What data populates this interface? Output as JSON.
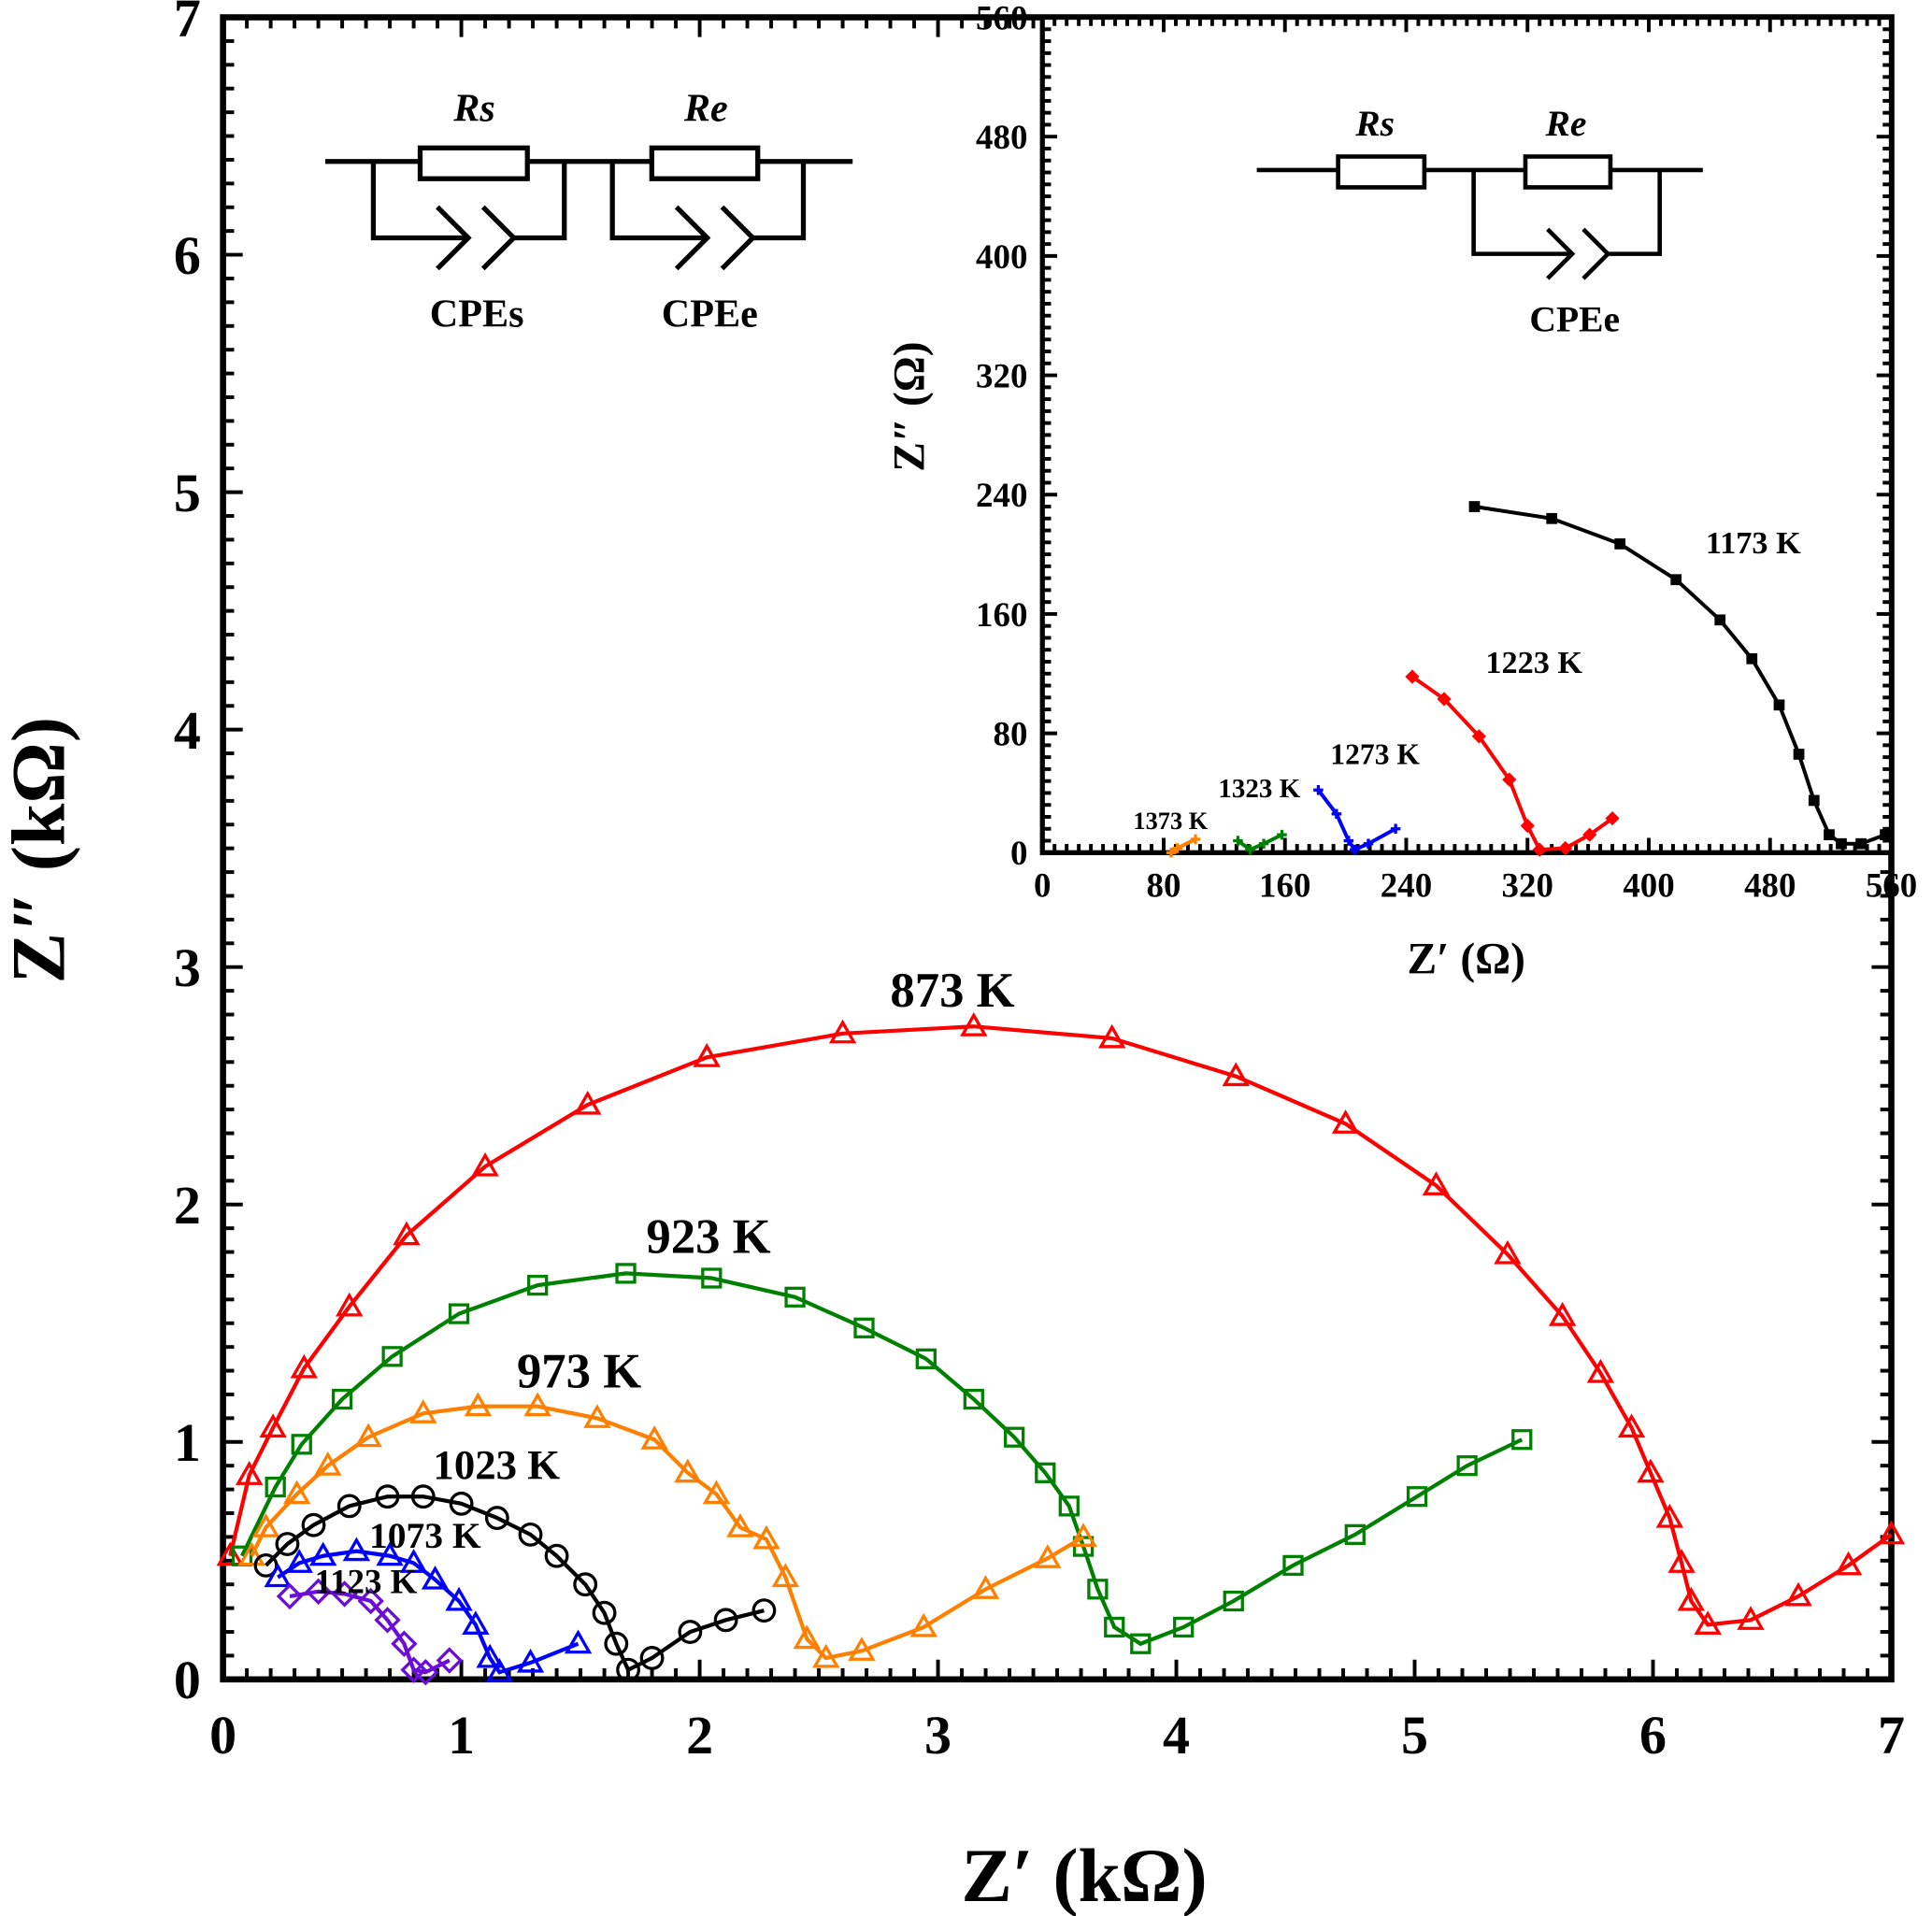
{
  "chart_data": [
    {
      "type": "scatter",
      "xlabel": "Z′ (kΩ)",
      "ylabel": "Z″ (kΩ)",
      "xlim": [
        0,
        7
      ],
      "ylim": [
        0,
        7
      ],
      "xticks": [
        "0",
        "1",
        "2",
        "3",
        "4",
        "5",
        "6",
        "7"
      ],
      "yticks": [
        "0",
        "1",
        "2",
        "3",
        "4",
        "5",
        "6",
        "7"
      ],
      "grid": false,
      "circuit": {
        "labels": [
          "Rs",
          "Re",
          "CPEs",
          "CPEe"
        ]
      },
      "series": [
        {
          "name": "873 K",
          "color": "#ff0000",
          "marker": "triangle",
          "x": [
            0.03,
            0.11,
            0.21,
            0.34,
            0.53,
            0.77,
            1.1,
            1.53,
            2.03,
            2.6,
            3.15,
            3.73,
            4.25,
            4.71,
            5.09,
            5.39,
            5.62,
            5.78,
            5.91,
            5.99,
            6.07,
            6.12,
            6.16,
            6.23,
            6.41,
            6.61,
            6.82,
            7.0
          ],
          "y": [
            0.52,
            0.86,
            1.06,
            1.31,
            1.57,
            1.87,
            2.16,
            2.42,
            2.62,
            2.72,
            2.75,
            2.7,
            2.54,
            2.34,
            2.08,
            1.79,
            1.53,
            1.29,
            1.06,
            0.87,
            0.68,
            0.49,
            0.33,
            0.23,
            0.25,
            0.35,
            0.48,
            0.61
          ]
        },
        {
          "name": "923 K",
          "color": "#008000",
          "marker": "square",
          "x": [
            0.08,
            0.22,
            0.33,
            0.5,
            0.71,
            0.99,
            1.32,
            1.69,
            2.05,
            2.4,
            2.69,
            2.95,
            3.15,
            3.32,
            3.45,
            3.55,
            3.61,
            3.67,
            3.74,
            3.85,
            4.03,
            4.24,
            4.49,
            4.75,
            5.01,
            5.22,
            5.45
          ],
          "y": [
            0.52,
            0.81,
            0.99,
            1.18,
            1.36,
            1.54,
            1.66,
            1.71,
            1.69,
            1.61,
            1.48,
            1.35,
            1.18,
            1.02,
            0.87,
            0.73,
            0.56,
            0.38,
            0.22,
            0.15,
            0.22,
            0.33,
            0.48,
            0.61,
            0.77,
            0.9,
            1.01
          ]
        },
        {
          "name": "973 K",
          "color": "#ff8000",
          "marker": "triangle",
          "x": [
            0.12,
            0.18,
            0.31,
            0.44,
            0.61,
            0.84,
            1.07,
            1.32,
            1.57,
            1.81,
            1.95,
            2.07,
            2.17,
            2.28,
            2.36,
            2.45,
            2.53,
            2.68,
            2.94,
            3.2,
            3.46,
            3.61
          ],
          "y": [
            0.52,
            0.64,
            0.78,
            0.9,
            1.02,
            1.12,
            1.15,
            1.15,
            1.1,
            1.01,
            0.87,
            0.78,
            0.64,
            0.59,
            0.43,
            0.17,
            0.09,
            0.12,
            0.22,
            0.38,
            0.51,
            0.6
          ]
        },
        {
          "name": "1023 K",
          "color": "#000000",
          "marker": "circle",
          "x": [
            0.18,
            0.27,
            0.38,
            0.53,
            0.69,
            0.84,
            1.0,
            1.15,
            1.29,
            1.4,
            1.52,
            1.6,
            1.65,
            1.7,
            1.8,
            1.96,
            2.11,
            2.27
          ],
          "y": [
            0.48,
            0.57,
            0.65,
            0.73,
            0.77,
            0.77,
            0.74,
            0.68,
            0.61,
            0.52,
            0.4,
            0.28,
            0.15,
            0.04,
            0.09,
            0.2,
            0.25,
            0.29
          ]
        },
        {
          "name": "1073 K",
          "color": "#0000ff",
          "marker": "triangle",
          "x": [
            0.23,
            0.32,
            0.42,
            0.56,
            0.7,
            0.8,
            0.89,
            0.99,
            1.06,
            1.12,
            1.16,
            1.29,
            1.49
          ],
          "y": [
            0.43,
            0.49,
            0.52,
            0.54,
            0.52,
            0.49,
            0.42,
            0.33,
            0.23,
            0.09,
            0.03,
            0.07,
            0.15
          ]
        },
        {
          "name": "1123 K",
          "color": "#6a0dd6",
          "marker": "diamond",
          "x": [
            0.28,
            0.4,
            0.51,
            0.62,
            0.69,
            0.76,
            0.8,
            0.85,
            0.95
          ],
          "y": [
            0.35,
            0.37,
            0.36,
            0.33,
            0.25,
            0.15,
            0.04,
            0.03,
            0.08
          ]
        }
      ]
    },
    {
      "type": "scatter",
      "xlabel": "Z′ (Ω)",
      "ylabel": "Z″ (Ω)",
      "xlim": [
        0,
        560
      ],
      "ylim": [
        0,
        560
      ],
      "xticks": [
        "0",
        "80",
        "160",
        "240",
        "320",
        "400",
        "480",
        "560"
      ],
      "yticks": [
        "0",
        "80",
        "160",
        "240",
        "320",
        "400",
        "480",
        "560"
      ],
      "grid": false,
      "circuit": {
        "labels": [
          "Rs",
          "Re",
          "CPEe"
        ]
      },
      "series": [
        {
          "name": "1173 K",
          "color": "#000000",
          "marker": "square",
          "x": [
            285,
            336,
            381,
            418,
            447,
            468,
            486,
            499,
            509,
            519,
            527,
            540,
            556
          ],
          "y": [
            232,
            224,
            207,
            183,
            156,
            130,
            99,
            66,
            35,
            12,
            6,
            6,
            12
          ]
        },
        {
          "name": "1223 K",
          "color": "#ff0000",
          "marker": "diamond",
          "x": [
            244,
            265,
            288,
            308,
            320,
            328,
            345,
            361,
            376
          ],
          "y": [
            118,
            103,
            78,
            49,
            18,
            2,
            3,
            12,
            23
          ]
        },
        {
          "name": "1273 K",
          "color": "#0000ff",
          "marker": "cross",
          "x": [
            182,
            194,
            202,
            206,
            215,
            233
          ],
          "y": [
            42,
            26,
            8,
            2,
            6,
            16
          ]
        },
        {
          "name": "1323 K",
          "color": "#008000",
          "marker": "cross",
          "x": [
            129,
            137,
            146,
            158
          ],
          "y": [
            8,
            2,
            6,
            12
          ]
        },
        {
          "name": "1373 K",
          "color": "#ff8000",
          "marker": "cross",
          "x": [
            85,
            89,
            101
          ],
          "y": [
            0,
            3,
            9
          ]
        }
      ]
    }
  ]
}
